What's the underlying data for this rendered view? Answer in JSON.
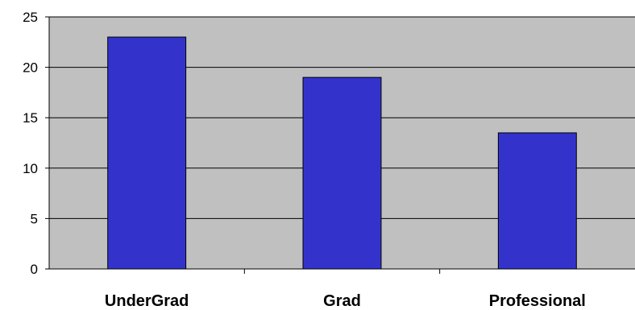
{
  "chart_data": {
    "type": "bar",
    "categories": [
      "UnderGrad",
      "Grad",
      "Professional"
    ],
    "values": [
      23,
      19,
      13.5
    ],
    "title": "",
    "xlabel": "",
    "ylabel": "",
    "ylim": [
      0,
      25
    ],
    "yticks": [
      0,
      5,
      10,
      15,
      20,
      25
    ],
    "ytick_labels": [
      "0",
      "5",
      "10",
      "15",
      "20",
      "25"
    ],
    "grid": true,
    "legend": "none",
    "colors": {
      "bar": "#3333cc",
      "plot_background": "#c0c0c0",
      "grid": "#000000"
    }
  }
}
